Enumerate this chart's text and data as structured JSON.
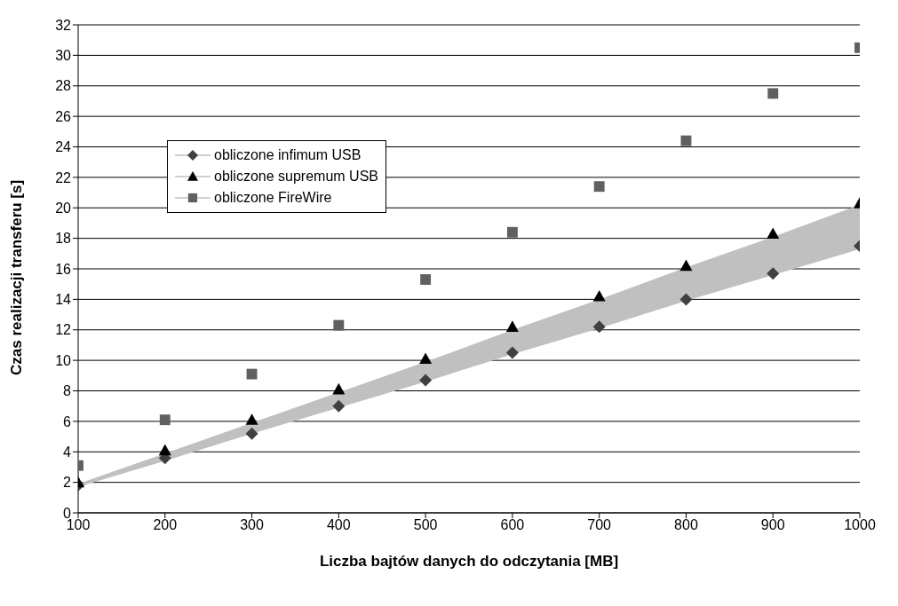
{
  "chart_data": {
    "type": "scatter",
    "xlabel": "Liczba bajtów danych do odczytania [MB]",
    "ylabel": "Czas realizacji transferu [s]",
    "x": [
      100,
      200,
      300,
      400,
      500,
      600,
      700,
      800,
      900,
      1000
    ],
    "series": [
      {
        "name": "obliczone infimum USB",
        "color": "#404040",
        "marker": "diamond",
        "values": [
          1.8,
          3.6,
          5.2,
          7.0,
          8.7,
          10.5,
          12.2,
          14.0,
          15.7,
          17.5
        ]
      },
      {
        "name": "obliczone supremum USB",
        "color": "#000000",
        "marker": "triangle",
        "values": [
          2.0,
          4.1,
          6.1,
          8.1,
          10.1,
          12.2,
          14.2,
          16.2,
          18.3,
          20.3
        ],
        "lower": [
          1.7,
          3.4,
          5.2,
          6.9,
          8.6,
          10.4,
          12.1,
          13.9,
          15.6,
          17.3
        ],
        "upper": [
          1.9,
          3.9,
          5.9,
          7.9,
          9.9,
          12.0,
          14.0,
          16.1,
          18.1,
          20.2
        ]
      },
      {
        "name": "obliczone FireWire",
        "color": "#606060",
        "marker": "square",
        "values": [
          3.1,
          6.1,
          9.1,
          12.3,
          15.3,
          18.4,
          21.4,
          24.4,
          27.5,
          30.5
        ]
      }
    ],
    "xlim": [
      100,
      1000
    ],
    "xticks": [
      100,
      200,
      300,
      400,
      500,
      600,
      700,
      800,
      900,
      1000
    ],
    "ylim": [
      0,
      32
    ],
    "yticks": [
      0,
      2,
      4,
      6,
      8,
      10,
      12,
      14,
      16,
      18,
      20,
      22,
      24,
      26,
      28,
      30,
      32
    ],
    "grid": "y",
    "legend": "top left"
  }
}
